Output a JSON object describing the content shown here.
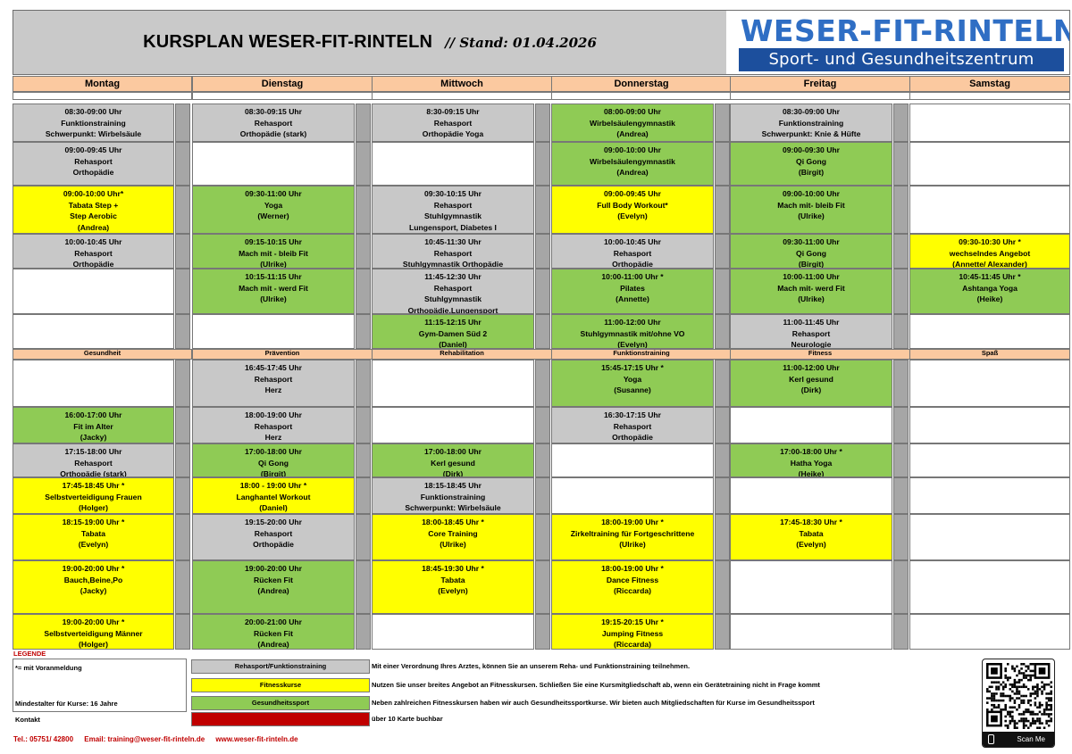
{
  "header": {
    "title": "KURSPLAN WESER-FIT-RINTELN",
    "stand": "// Stand: 01.04.2026",
    "logo_top": "WESER-FIT-RINTELN",
    "logo_sub": "Sport- und Gesundheitszentrum"
  },
  "days": [
    "Montag",
    "Dienstag",
    "Mittwoch",
    "Donnerstag",
    "Freitag",
    "Samstag"
  ],
  "categories": [
    "Gesundheit",
    "Prävention",
    "Rehabilitation",
    "Funktionstraining",
    "Fitness",
    "Spaß"
  ],
  "colors": {
    "gray": "#c8c8c8",
    "green": "#8fcb55",
    "yellow": "#ffff00",
    "red": "#c00000",
    "peach": "#fbc9a0"
  },
  "courses": [
    {
      "day": 0,
      "row": 0,
      "color": "gray",
      "lines": [
        "08:30-09:00 Uhr",
        "Funktionstraining",
        "Schwerpunkt: Wirbelsäule"
      ]
    },
    {
      "day": 1,
      "row": 0,
      "color": "gray",
      "lines": [
        "08:30-09:15 Uhr",
        "Rehasport",
        "Orthopädie (stark)"
      ]
    },
    {
      "day": 2,
      "row": 0,
      "color": "gray",
      "lines": [
        "8:30-09:15 Uhr",
        "Rehasport",
        "Orthopädie Yoga"
      ]
    },
    {
      "day": 3,
      "row": 0,
      "color": "green",
      "lines": [
        "08:00-09:00 Uhr",
        "Wirbelsäulengymnastik",
        "(Andrea)"
      ]
    },
    {
      "day": 4,
      "row": 0,
      "color": "gray",
      "lines": [
        "08:30-09:00 Uhr",
        "Funktionstraining",
        "Schwerpunkt: Knie & Hüfte"
      ]
    },
    {
      "day": 0,
      "row": 1,
      "color": "gray",
      "lines": [
        "09:00-09:45 Uhr",
        "Rehasport",
        "Orthopädie"
      ]
    },
    {
      "day": 3,
      "row": 1,
      "color": "green",
      "lines": [
        "09:00-10:00 Uhr",
        "Wirbelsäulengymnastik",
        "(Andrea)"
      ]
    },
    {
      "day": 4,
      "row": 1,
      "color": "green",
      "lines": [
        "09:00-09:30 Uhr",
        "Qi Gong",
        "(Birgit)"
      ]
    },
    {
      "day": 0,
      "row": 2,
      "color": "yellow",
      "lines": [
        "09:00-10:00 Uhr*",
        "Tabata Step +",
        "Step Aerobic",
        "(Andrea)"
      ]
    },
    {
      "day": 1,
      "row": 2,
      "color": "green",
      "lines": [
        "09:30-11:00 Uhr",
        "Yoga",
        "(Werner)"
      ]
    },
    {
      "day": 2,
      "row": 2,
      "color": "gray",
      "lines": [
        "09:30-10:15 Uhr",
        "Rehasport",
        "Stuhlgymnastik",
        "Lungensport, Diabetes I"
      ]
    },
    {
      "day": 3,
      "row": 2,
      "color": "yellow",
      "lines": [
        "09:00-09:45 Uhr",
        "Full Body Workout*",
        "(Evelyn)"
      ]
    },
    {
      "day": 4,
      "row": 2,
      "color": "green",
      "lines": [
        "09:00-10:00 Uhr",
        "Mach mit- bleib Fit",
        "(Ulrike)"
      ]
    },
    {
      "day": 0,
      "row": 3,
      "color": "gray",
      "lines": [
        "10:00-10:45 Uhr",
        "Rehasport",
        "Orthopädie"
      ]
    },
    {
      "day": 1,
      "row": 3,
      "color": "green",
      "lines": [
        "09:15-10:15 Uhr",
        "Mach mit - bleib Fit",
        "(Ulrike)"
      ]
    },
    {
      "day": 2,
      "row": 3,
      "color": "gray",
      "lines": [
        "10:45-11:30 Uhr",
        "Rehasport",
        "Stuhlgymnastik Orthopädie"
      ]
    },
    {
      "day": 3,
      "row": 3,
      "color": "gray",
      "lines": [
        "10:00-10:45 Uhr",
        "Rehasport",
        "Orthopädie"
      ]
    },
    {
      "day": 4,
      "row": 3,
      "color": "green",
      "lines": [
        "09:30-11:00 Uhr",
        "Qi Gong",
        "(Birgit)"
      ]
    },
    {
      "day": 5,
      "row": 3,
      "color": "yellow",
      "lines": [
        "09:30-10:30 Uhr *",
        "wechselndes Angebot",
        "(Annette/ Alexander)"
      ]
    },
    {
      "day": 1,
      "row": 4,
      "color": "green",
      "lines": [
        "10:15-11:15 Uhr",
        "Mach mit - werd Fit",
        "(Ulrike)"
      ]
    },
    {
      "day": 2,
      "row": 4,
      "color": "gray",
      "lines": [
        "11:45-12:30 Uhr",
        "Rehasport",
        "Stuhlgymnastik",
        "Orthopädie,Lungensport"
      ]
    },
    {
      "day": 3,
      "row": 4,
      "color": "green",
      "lines": [
        "10:00-11:00 Uhr *",
        "Pilates",
        "(Annette)"
      ]
    },
    {
      "day": 4,
      "row": 4,
      "color": "green",
      "lines": [
        "10:00-11:00 Uhr",
        "Mach mit- werd Fit",
        "(Ulrike)"
      ]
    },
    {
      "day": 5,
      "row": 4,
      "color": "green",
      "lines": [
        "10:45-11:45 Uhr *",
        "Ashtanga Yoga",
        "(Heike)"
      ]
    },
    {
      "day": 2,
      "row": 5,
      "color": "green",
      "lines": [
        "11:15-12:15 Uhr",
        "Gym-Damen Süd 2",
        "(Daniel)"
      ]
    },
    {
      "day": 3,
      "row": 5,
      "color": "green",
      "lines": [
        "11:00-12:00 Uhr",
        "Stuhlgymnastik mit/ohne VO",
        "(Evelyn)"
      ]
    },
    {
      "day": 4,
      "row": 5,
      "color": "gray",
      "lines": [
        "11:00-11:45 Uhr",
        "Rehasport",
        "Neurologie"
      ]
    },
    {
      "day": 1,
      "row": 6,
      "color": "gray",
      "lines": [
        "16:45-17:45 Uhr",
        "Rehasport",
        "Herz"
      ]
    },
    {
      "day": 3,
      "row": 6,
      "color": "green",
      "lines": [
        "15:45-17:15 Uhr *",
        "Yoga",
        "(Susanne)"
      ]
    },
    {
      "day": 4,
      "row": 6,
      "color": "green",
      "lines": [
        "11:00-12:00 Uhr",
        "Kerl gesund",
        "(Dirk)"
      ]
    },
    {
      "day": 0,
      "row": 7,
      "color": "green",
      "lines": [
        "16:00-17:00 Uhr",
        "Fit im Alter",
        "(Jacky)"
      ]
    },
    {
      "day": 1,
      "row": 7,
      "color": "gray",
      "lines": [
        "18:00-19:00 Uhr",
        "Rehasport",
        "Herz"
      ]
    },
    {
      "day": 3,
      "row": 7,
      "color": "gray",
      "lines": [
        "16:30-17:15 Uhr",
        "Rehasport",
        "Orthopädie"
      ]
    },
    {
      "day": 0,
      "row": 8,
      "color": "gray",
      "lines": [
        "17:15-18:00 Uhr",
        "Rehasport",
        "Orthopädie (stark)"
      ]
    },
    {
      "day": 1,
      "row": 8,
      "color": "green",
      "lines": [
        "17:00-18:00 Uhr",
        "Qi Gong",
        "(Birgit)"
      ]
    },
    {
      "day": 2,
      "row": 8,
      "color": "green",
      "lines": [
        "17:00-18:00 Uhr",
        "Kerl gesund",
        "(Dirk)"
      ]
    },
    {
      "day": 4,
      "row": 8,
      "color": "green",
      "lines": [
        "17:00-18:00 Uhr *",
        "Hatha Yoga",
        "(Heike)"
      ]
    },
    {
      "day": 0,
      "row": 9,
      "color": "yellow",
      "lines": [
        "17:45-18:45 Uhr *",
        "Selbstverteidigung Frauen",
        "(Holger)"
      ]
    },
    {
      "day": 1,
      "row": 9,
      "color": "yellow",
      "lines": [
        "18:00 - 19:00 Uhr *",
        "Langhantel Workout",
        "(Daniel)"
      ]
    },
    {
      "day": 2,
      "row": 9,
      "color": "gray",
      "lines": [
        "18:15-18:45 Uhr",
        "Funktionstraining",
        "Schwerpunkt: Wirbelsäule"
      ]
    },
    {
      "day": 0,
      "row": 10,
      "color": "yellow",
      "lines": [
        "18:15-19:00 Uhr *",
        "Tabata",
        "(Evelyn)"
      ]
    },
    {
      "day": 1,
      "row": 10,
      "color": "gray",
      "lines": [
        "19:15-20:00 Uhr",
        "Rehasport",
        "Orthopädie"
      ]
    },
    {
      "day": 2,
      "row": 10,
      "color": "yellow",
      "lines": [
        "18:00-18:45 Uhr *",
        "Core Training",
        "(Ulrike)"
      ]
    },
    {
      "day": 3,
      "row": 10,
      "color": "yellow",
      "lines": [
        "18:00-19:00 Uhr *",
        "Zirkeltraining für Fortgeschrittene",
        "(Ulrike)"
      ]
    },
    {
      "day": 4,
      "row": 10,
      "color": "yellow",
      "lines": [
        "17:45-18:30 Uhr *",
        "Tabata",
        "(Evelyn)"
      ]
    },
    {
      "day": 0,
      "row": 11,
      "color": "yellow",
      "lines": [
        "19:00-20:00 Uhr *",
        "Bauch,Beine,Po",
        "(Jacky)"
      ]
    },
    {
      "day": 1,
      "row": 11,
      "color": "green",
      "lines": [
        "19:00-20:00 Uhr",
        "Rücken Fit",
        "(Andrea)"
      ]
    },
    {
      "day": 2,
      "row": 11,
      "color": "yellow",
      "lines": [
        "18:45-19:30 Uhr *",
        "Tabata",
        "(Evelyn)"
      ]
    },
    {
      "day": 3,
      "row": 11,
      "color": "yellow",
      "lines": [
        "18:00-19:00 Uhr *",
        "Dance Fitness",
        "(Riccarda)"
      ]
    },
    {
      "day": 0,
      "row": 12,
      "color": "yellow",
      "lines": [
        "19:00-20:00 Uhr *",
        "Selbstverteidigung Männer",
        "(Holger)"
      ]
    },
    {
      "day": 1,
      "row": 12,
      "color": "green",
      "lines": [
        "20:00-21:00 Uhr",
        "Rücken Fit",
        "(Andrea)"
      ]
    },
    {
      "day": 3,
      "row": 12,
      "color": "yellow",
      "lines": [
        "19:15-20:15 Uhr *",
        "Jumping Fitness",
        "(Riccarda)"
      ]
    }
  ],
  "legend": {
    "title": "LEGENDE",
    "note_anmeldung": "*= mit Voranmeldung",
    "note_alter": "Mindestalter für Kurse: 16 Jahre",
    "note_kontakt": "Kontakt",
    "items": [
      {
        "label": "Rehasport/Funktionstraining",
        "color": "gray",
        "desc": "Mit einer Verordnung Ihres Arztes, können Sie an unserem Reha- und Funktionstraining teilnehmen."
      },
      {
        "label": "Fitnesskurse",
        "color": "yellow",
        "desc": "Nutzen Sie unser breites Angebot an Fitnesskursen. Schließen Sie eine Kursmitgliedschaft ab, wenn ein Gerätetraining nicht in Frage kommt"
      },
      {
        "label": "Gesundheitssport",
        "color": "green",
        "desc": "Neben zahlreichen Fitnesskursen haben wir auch Gesundheitssportkurse. Wir bieten auch Mitgliedschaften für Kurse im Gesundheitssport"
      },
      {
        "label": "Zusatzkurse",
        "color": "red",
        "desc": "über 10 Karte buchbar"
      }
    ]
  },
  "contact": {
    "tel": "Tel.: 05751/ 42800",
    "email": "Email: training@weser-fit-rinteln.de",
    "web": "www.weser-fit-rinteln.de"
  },
  "qr": {
    "label": "Scan Me"
  }
}
